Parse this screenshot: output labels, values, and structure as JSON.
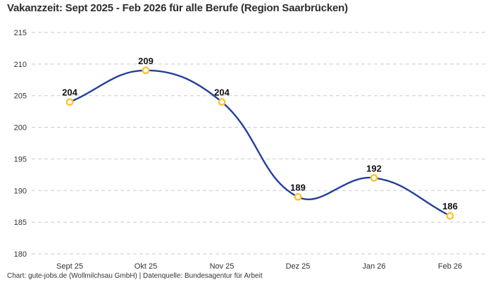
{
  "header": {
    "title": "Vakanzzeit: Sept 2025 - Feb 2026 für alle Berufe (Region Saarbrücken)"
  },
  "footer": {
    "credit": "Chart: gute-jobs.de (Wollmilchsau GmbH) | Datenquelle: Bundesagentur für Arbeit"
  },
  "chart_data": {
    "type": "line",
    "title": "Vakanzzeit: Sept 2025 - Feb 2026 für alle Berufe (Region Saarbrücken)",
    "categories": [
      "Sept 25",
      "Okt 25",
      "Nov 25",
      "Dez 25",
      "Jan 26",
      "Feb 26"
    ],
    "values": [
      204,
      209,
      204,
      189,
      192,
      186
    ],
    "xlabel": "",
    "ylabel": "",
    "ylim": [
      180,
      215
    ],
    "yticks": [
      215,
      210,
      205,
      200,
      195,
      190,
      185,
      180
    ],
    "grid": "horizontal-dashed",
    "legend": "none",
    "smooth": true,
    "colors": {
      "line": "#23409A",
      "marker_stroke": "#FFC332",
      "marker_fill": "#FFFFFF",
      "grid": "#CBCBCB",
      "tick_text": "#333333",
      "point_label_text": "#111111"
    }
  }
}
